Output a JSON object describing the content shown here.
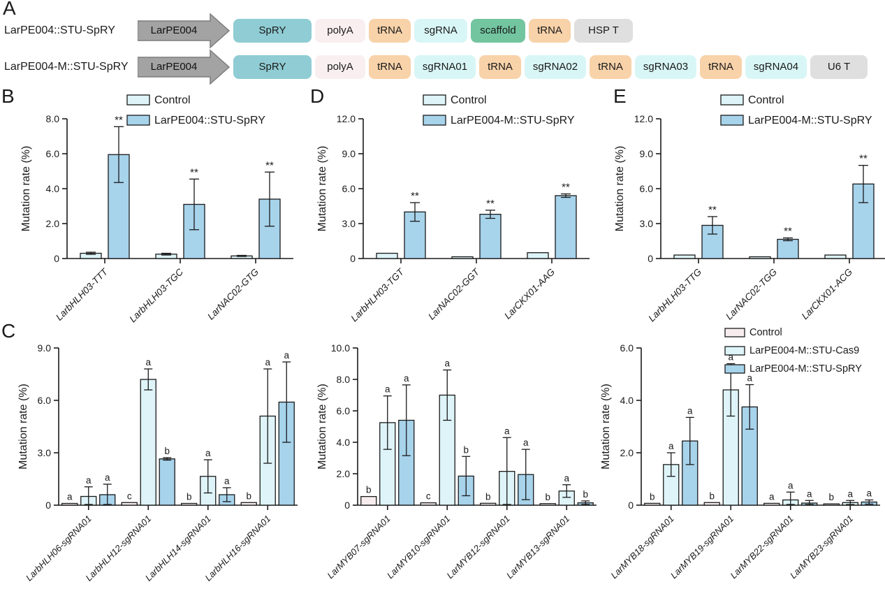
{
  "panel_letters": {
    "A": "A",
    "B": "B",
    "C": "C",
    "D": "D",
    "E": "E"
  },
  "construct_diagram": {
    "colors": {
      "cas": "#8fccd3",
      "polya": "#f9eff0",
      "trna": "#f8d2a9",
      "sgrna": "#d9f6f6",
      "scaffold": "#73c5a0",
      "term": "#dfdfdf",
      "promoter_fill": "#a3a3a3",
      "promoter_stroke": "#7d7d7d"
    },
    "rows": [
      {
        "label": "LarPE004::STU-SpRY",
        "promoter": "LarPE004",
        "segments": [
          {
            "label": "SpRY",
            "type": "cas",
            "w": 112
          },
          {
            "label": "polyA",
            "type": "polya",
            "w": 72
          },
          {
            "label": "tRNA",
            "type": "trna",
            "w": 60
          },
          {
            "label": "sgRNA",
            "type": "sgrna",
            "w": 76
          },
          {
            "label": "scaffold",
            "type": "scaffold",
            "w": 78
          },
          {
            "label": "tRNA",
            "type": "trna",
            "w": 60
          },
          {
            "label": "HSP T",
            "type": "term",
            "w": 84
          }
        ]
      },
      {
        "label": "LarPE004-M::STU-SpRY",
        "promoter": "LarPE004",
        "segments": [
          {
            "label": "SpRY",
            "type": "cas",
            "w": 112
          },
          {
            "label": "polyA",
            "type": "polya",
            "w": 72
          },
          {
            "label": "tRNA",
            "type": "trna",
            "w": 60
          },
          {
            "label": "sgRNA01",
            "type": "sgrna",
            "w": 88
          },
          {
            "label": "tRNA",
            "type": "trna",
            "w": 60
          },
          {
            "label": "sgRNA02",
            "type": "sgrna",
            "w": 88
          },
          {
            "label": "tRNA",
            "type": "trna",
            "w": 60
          },
          {
            "label": "sgRNA03",
            "type": "sgrna",
            "w": 88
          },
          {
            "label": "tRNA",
            "type": "trna",
            "w": 60
          },
          {
            "label": "sgRNA04",
            "type": "sgrna",
            "w": 88
          },
          {
            "label": "U6 T",
            "type": "term",
            "w": 82
          }
        ]
      }
    ]
  },
  "chart_data": [
    {
      "panel": "B",
      "type": "bar",
      "ylabel": "Mutation rate (%)",
      "ylim": [
        0,
        8
      ],
      "ytick_values": [
        0,
        2,
        4,
        6,
        8
      ],
      "ytick_labels": [
        "0",
        "2.0",
        "4.0",
        "6.0",
        "8.0"
      ],
      "categories": [
        "LarbHLH03-TTT",
        "LarbHLH03-TGC",
        "LarNAC02-GTG"
      ],
      "series": [
        {
          "name": "Control",
          "color": "#ddf3f7",
          "values": [
            0.3,
            0.25,
            0.15
          ],
          "errors": [
            0.06,
            0.05,
            0.03
          ],
          "labels": [
            "",
            "",
            ""
          ]
        },
        {
          "name": "LarPE004::STU-SpRY",
          "color": "#a7d3eb",
          "values": [
            5.95,
            3.1,
            3.4
          ],
          "errors": [
            1.6,
            1.45,
            1.55
          ],
          "labels": [
            "**",
            "**",
            "**"
          ]
        }
      ],
      "legend": {
        "show": true,
        "position": "top-right"
      },
      "grid": false
    },
    {
      "panel": "D",
      "type": "bar",
      "ylabel": "Mutation rate (%)",
      "ylim": [
        0,
        12
      ],
      "ytick_values": [
        0,
        3,
        6,
        9,
        12
      ],
      "ytick_labels": [
        "0",
        "3.0",
        "6.0",
        "9.0",
        "12.0"
      ],
      "categories": [
        "LarbHLH03-TGT",
        "LarNAC02-GGT",
        "LarCKX01-AAG"
      ],
      "series": [
        {
          "name": "Control",
          "color": "#ddf3f7",
          "values": [
            0.45,
            0.15,
            0.5
          ],
          "errors": [
            0,
            0,
            0
          ],
          "labels": [
            "",
            "",
            ""
          ]
        },
        {
          "name": "LarPE004-M::STU-SpRY",
          "color": "#a7d3eb",
          "values": [
            4.0,
            3.8,
            5.4
          ],
          "errors": [
            0.8,
            0.35,
            0.15
          ],
          "labels": [
            "**",
            "**",
            "**"
          ]
        }
      ],
      "legend": {
        "show": true,
        "position": "top-right"
      },
      "grid": false
    },
    {
      "panel": "E",
      "type": "bar",
      "ylabel": "Mutation rate (%)",
      "ylim": [
        0,
        12
      ],
      "ytick_values": [
        0,
        3,
        6,
        9,
        12
      ],
      "ytick_labels": [
        "0",
        "3.0",
        "6.0",
        "9.0",
        "12.0"
      ],
      "categories": [
        "LarbHLH03-TTG",
        "LarNAC02-TGG",
        "LarCKX01-ACG"
      ],
      "series": [
        {
          "name": "Control",
          "color": "#ddf3f7",
          "values": [
            0.3,
            0.15,
            0.3
          ],
          "errors": [
            0,
            0,
            0
          ],
          "labels": [
            "",
            "",
            ""
          ]
        },
        {
          "name": "LarPE004-M::STU-SpRY",
          "color": "#a7d3eb",
          "values": [
            2.85,
            1.65,
            6.4
          ],
          "errors": [
            0.75,
            0.12,
            1.6
          ],
          "labels": [
            "**",
            "**",
            "**"
          ]
        }
      ],
      "legend": {
        "show": true,
        "position": "top-right"
      },
      "grid": false
    },
    {
      "panel": "C1",
      "type": "bar",
      "ylabel": "Mutation rate (%)",
      "ylim": [
        0,
        9
      ],
      "ytick_values": [
        0,
        3,
        6,
        9
      ],
      "ytick_labels": [
        "0",
        "3.0",
        "6.0",
        "9.0"
      ],
      "categories": [
        "LarbHLH06-sgRNA01",
        "LarbHLH12-sgRNA01",
        "LarbHLH14-sgRNA01",
        "LarbHLH16-sgRNA01"
      ],
      "series": [
        {
          "name": "Control",
          "color": "#f7edee",
          "values": [
            0.1,
            0.15,
            0.1,
            0.15
          ],
          "errors": [
            0,
            0,
            0,
            0
          ],
          "labels": [
            "a",
            "c",
            "b",
            "b"
          ]
        },
        {
          "name": "LarPE004-M::STU-Cas9",
          "color": "#def4f8",
          "values": [
            0.5,
            7.2,
            1.65,
            5.1
          ],
          "errors": [
            0.55,
            0.6,
            0.95,
            2.7
          ],
          "labels": [
            "a",
            "a",
            "a",
            "a"
          ]
        },
        {
          "name": "LarPE004-M::STU-SpRY",
          "color": "#a7d3eb",
          "values": [
            0.6,
            2.65,
            0.6,
            5.9
          ],
          "errors": [
            0.6,
            0.07,
            0.4,
            2.3
          ],
          "labels": [
            "a",
            "b",
            "a",
            "a"
          ]
        }
      ],
      "legend": {
        "show": false,
        "position": null
      },
      "grid": false
    },
    {
      "panel": "C2",
      "type": "bar",
      "ylabel": "Mutation rate (%)",
      "ylim": [
        0,
        10
      ],
      "ytick_values": [
        0,
        2,
        4,
        6,
        8,
        10
      ],
      "ytick_labels": [
        "0",
        "2.0",
        "4.0",
        "6.0",
        "8.0",
        "10.0"
      ],
      "categories": [
        "LarMYB07-sgRNA01",
        "LarMYB10-sgRNA01",
        "LarMYB12-sgRNA01",
        "LarMYB13-sgRNA01"
      ],
      "series": [
        {
          "name": "Control",
          "color": "#f7edee",
          "values": [
            0.55,
            0.15,
            0.12,
            0.1
          ],
          "errors": [
            0,
            0,
            0,
            0
          ],
          "labels": [
            "b",
            "c",
            "b",
            "b"
          ]
        },
        {
          "name": "LarPE004-M::STU-Cas9",
          "color": "#def4f8",
          "values": [
            5.25,
            7.0,
            2.15,
            0.9
          ],
          "errors": [
            1.7,
            1.6,
            2.15,
            0.4
          ],
          "labels": [
            "a",
            "a",
            "a",
            "a"
          ]
        },
        {
          "name": "LarPE004-M::STU-SpRY",
          "color": "#a7d3eb",
          "values": [
            5.4,
            1.85,
            1.95,
            0.15
          ],
          "errors": [
            2.25,
            1.25,
            1.6,
            0.12
          ],
          "labels": [
            "a",
            "b",
            "a",
            "b"
          ]
        }
      ],
      "legend": {
        "show": false,
        "position": null
      },
      "grid": false
    },
    {
      "panel": "C3",
      "type": "bar",
      "ylabel": "Mutation rate (%)",
      "ylim": [
        0,
        6
      ],
      "ytick_values": [
        0,
        2,
        4,
        6
      ],
      "ytick_labels": [
        "0",
        "2.0",
        "4.0",
        "6.0"
      ],
      "categories": [
        "LarMYB18-sgRNA01",
        "LarMYB19-sgRNA01",
        "LarMYB22-sgRNA01",
        "LarMYB23-sgRNA01"
      ],
      "series": [
        {
          "name": "Control",
          "color": "#f7edee",
          "values": [
            0.07,
            0.1,
            0.07,
            0.05
          ],
          "errors": [
            0,
            0,
            0,
            0
          ],
          "labels": [
            "b",
            "b",
            "a",
            "b"
          ]
        },
        {
          "name": "LarPE004-M::STU-Cas9",
          "color": "#def4f8",
          "values": [
            1.55,
            4.4,
            0.2,
            0.1
          ],
          "errors": [
            0.45,
            1.0,
            0.3,
            0.08
          ],
          "labels": [
            "a",
            "a",
            "a",
            "a"
          ]
        },
        {
          "name": "LarPE004-M::STU-SpRY",
          "color": "#a7d3eb",
          "values": [
            2.45,
            3.75,
            0.08,
            0.12
          ],
          "errors": [
            0.9,
            0.85,
            0.1,
            0.08
          ],
          "labels": [
            "a",
            "a",
            "a",
            "a"
          ]
        }
      ],
      "legend": {
        "show": true,
        "position": "top-right"
      },
      "grid": false
    }
  ]
}
